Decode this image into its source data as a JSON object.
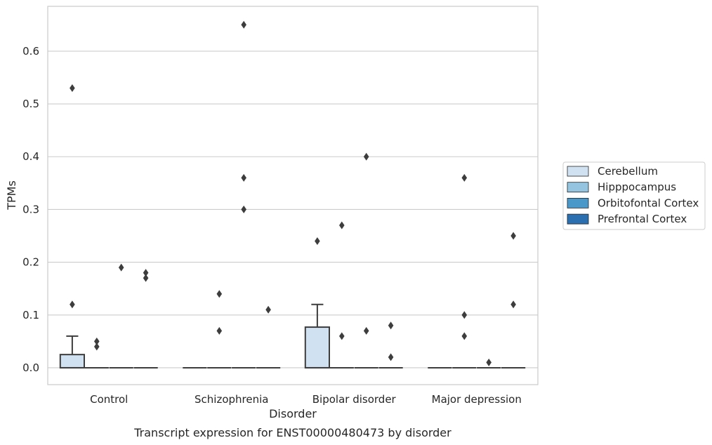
{
  "chart_data": {
    "type": "box",
    "caption": "Transcript expression for ENST00000480473 by disorder",
    "xlabel": "Disorder",
    "ylabel": "TPMs",
    "ylim": [
      -0.032,
      0.685
    ],
    "yticks": [
      "0.0",
      "0.1",
      "0.2",
      "0.3",
      "0.4",
      "0.5",
      "0.6"
    ],
    "ytick_values": [
      0.0,
      0.1,
      0.2,
      0.3,
      0.4,
      0.5,
      0.6
    ],
    "grid": "horizontal",
    "legend_position": "center-right",
    "categories": [
      "Control",
      "Schizophrenia",
      "Bipolar disorder",
      "Major depression"
    ],
    "series": [
      {
        "name": "Cerebellum",
        "color": "#d0e1f2",
        "boxes": [
          {
            "q1": 0.0,
            "median": 0.0,
            "q3": 0.025,
            "whisker_low": 0.0,
            "whisker_high": 0.06,
            "outliers": [
              0.53,
              0.12
            ]
          },
          {
            "q1": 0.0,
            "median": 0.0,
            "q3": 0.0,
            "whisker_low": 0.0,
            "whisker_high": 0.0,
            "outliers": []
          },
          {
            "q1": 0.0,
            "median": 0.0,
            "q3": 0.077,
            "whisker_low": 0.0,
            "whisker_high": 0.12,
            "outliers": [
              0.24
            ]
          },
          {
            "q1": 0.0,
            "median": 0.0,
            "q3": 0.0,
            "whisker_low": 0.0,
            "whisker_high": 0.0,
            "outliers": []
          }
        ]
      },
      {
        "name": "Hipppocampus",
        "color": "#94c4df",
        "boxes": [
          {
            "q1": 0.0,
            "median": 0.0,
            "q3": 0.0,
            "whisker_low": 0.0,
            "whisker_high": 0.0,
            "outliers": [
              0.05,
              0.04
            ]
          },
          {
            "q1": 0.0,
            "median": 0.0,
            "q3": 0.0,
            "whisker_low": 0.0,
            "whisker_high": 0.0,
            "outliers": [
              0.14,
              0.07
            ]
          },
          {
            "q1": 0.0,
            "median": 0.0,
            "q3": 0.0,
            "whisker_low": 0.0,
            "whisker_high": 0.0,
            "outliers": [
              0.27,
              0.06
            ]
          },
          {
            "q1": 0.0,
            "median": 0.0,
            "q3": 0.0,
            "whisker_low": 0.0,
            "whisker_high": 0.0,
            "outliers": [
              0.36,
              0.1,
              0.06
            ]
          }
        ]
      },
      {
        "name": "Orbitofontal Cortex",
        "color": "#4a98c9",
        "boxes": [
          {
            "q1": 0.0,
            "median": 0.0,
            "q3": 0.0,
            "whisker_low": 0.0,
            "whisker_high": 0.0,
            "outliers": [
              0.19
            ]
          },
          {
            "q1": 0.0,
            "median": 0.0,
            "q3": 0.0,
            "whisker_low": 0.0,
            "whisker_high": 0.0,
            "outliers": [
              0.65,
              0.36,
              0.3
            ]
          },
          {
            "q1": 0.0,
            "median": 0.0,
            "q3": 0.0,
            "whisker_low": 0.0,
            "whisker_high": 0.0,
            "outliers": [
              0.4,
              0.07
            ]
          },
          {
            "q1": 0.0,
            "median": 0.0,
            "q3": 0.0,
            "whisker_low": 0.0,
            "whisker_high": 0.0,
            "outliers": [
              0.01
            ]
          }
        ]
      },
      {
        "name": "Prefrontal Cortex",
        "color": "#2c6fb0",
        "boxes": [
          {
            "q1": 0.0,
            "median": 0.0,
            "q3": 0.0,
            "whisker_low": 0.0,
            "whisker_high": 0.0,
            "outliers": [
              0.18,
              0.17
            ]
          },
          {
            "q1": 0.0,
            "median": 0.0,
            "q3": 0.0,
            "whisker_low": 0.0,
            "whisker_high": 0.0,
            "outliers": [
              0.11
            ]
          },
          {
            "q1": 0.0,
            "median": 0.0,
            "q3": 0.0,
            "whisker_low": 0.0,
            "whisker_high": 0.0,
            "outliers": [
              0.08,
              0.02
            ]
          },
          {
            "q1": 0.0,
            "median": 0.0,
            "q3": 0.0,
            "whisker_low": 0.0,
            "whisker_high": 0.0,
            "outliers": [
              0.25,
              0.12
            ]
          }
        ]
      }
    ]
  }
}
